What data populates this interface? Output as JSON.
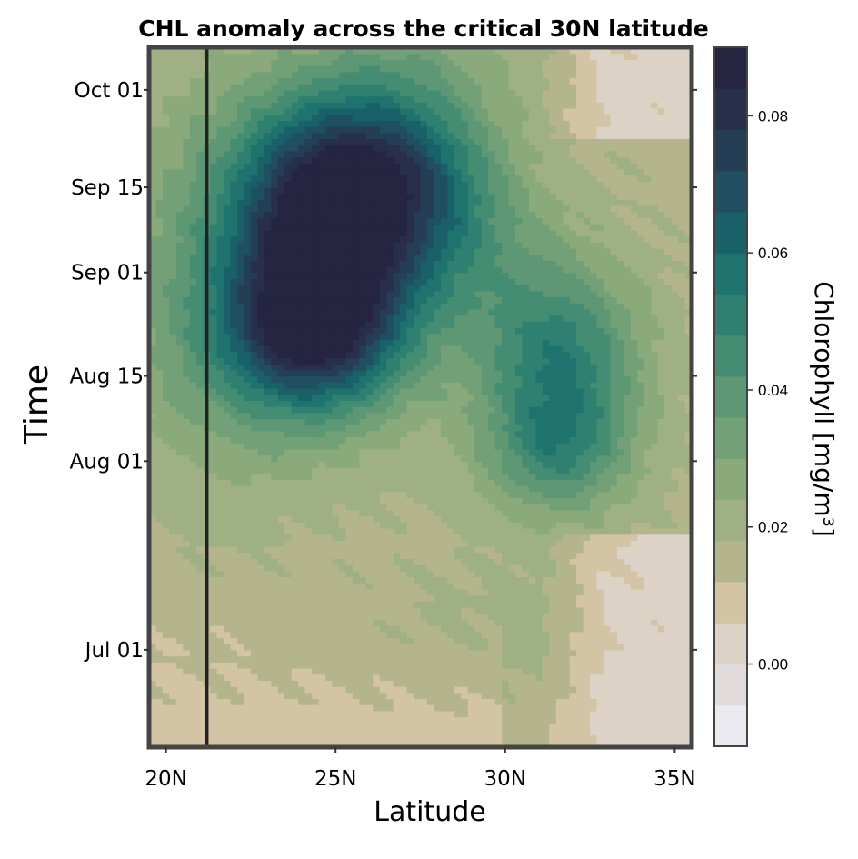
{
  "chart_data": {
    "type": "heatmap",
    "title": "CHL anomaly across the critical 30N latitude",
    "xlabel": "Latitude",
    "ylabel": "Time",
    "colorbar_label": "Chlorophyll [mg/m³]",
    "xlim": [
      19.5,
      35.5
    ],
    "x_ticks": [
      {
        "value": 20,
        "label": "20N"
      },
      {
        "value": 25,
        "label": "25N"
      },
      {
        "value": 30,
        "label": "30N"
      },
      {
        "value": 35,
        "label": "35N"
      }
    ],
    "y_range_days_since_jun15": [
      0,
      115
    ],
    "y_ticks": [
      {
        "value": 16,
        "label": "Jul 01"
      },
      {
        "value": 47,
        "label": "Aug 01"
      },
      {
        "value": 61,
        "label": "Aug 15"
      },
      {
        "value": 78,
        "label": "Sep 01"
      },
      {
        "value": 92,
        "label": "Sep 15"
      },
      {
        "value": 108,
        "label": "Oct 01"
      }
    ],
    "vertical_line_at": 21.2,
    "colorbar": {
      "range": [
        -0.012,
        0.09
      ],
      "ticks": [
        0.0,
        0.02,
        0.04,
        0.06,
        0.08
      ],
      "tick_labels": [
        "0.00",
        "0.02",
        "0.04",
        "0.06",
        "0.08"
      ],
      "levels": [
        -0.012,
        -0.006,
        0.0,
        0.006,
        0.012,
        0.018,
        0.024,
        0.03,
        0.036,
        0.042,
        0.048,
        0.054,
        0.06,
        0.066,
        0.072,
        0.078,
        0.084,
        0.09
      ],
      "colors": [
        "#eceaf1",
        "#e1dbdb",
        "#ddd2c6",
        "#d3c4a5",
        "#b5b58d",
        "#9fb184",
        "#8aaa7c",
        "#73a077",
        "#5d9774",
        "#448c72",
        "#2f8070",
        "#1f736f",
        "#1a6068",
        "#1f4f60",
        "#243e56",
        "#282f4b",
        "#252441"
      ]
    },
    "blobs": [
      {
        "lat": 24.6,
        "day": 79,
        "slat": 1.9,
        "sday": 14,
        "amp": 0.072
      },
      {
        "lat": 25.6,
        "day": 97,
        "slat": 2.2,
        "sday": 9,
        "amp": 0.03
      },
      {
        "lat": 24.2,
        "day": 66,
        "slat": 2.0,
        "sday": 8,
        "amp": 0.025
      },
      {
        "lat": 27.3,
        "day": 92,
        "slat": 1.8,
        "sday": 11,
        "amp": 0.022
      },
      {
        "lat": 28.7,
        "day": 82,
        "slat": 1.8,
        "sday": 11,
        "amp": 0.014
      },
      {
        "lat": 31.6,
        "day": 63,
        "slat": 1.7,
        "sday": 12,
        "amp": 0.036
      },
      {
        "lat": 31.5,
        "day": 48,
        "slat": 1.5,
        "sday": 7,
        "amp": 0.02
      },
      {
        "lat": 21.5,
        "day": 76,
        "slat": 2.5,
        "sday": 24,
        "amp": 0.016
      },
      {
        "lat": 27.0,
        "day": 114,
        "slat": 2.5,
        "sday": 8,
        "amp": 0.01
      },
      {
        "lat": 29.2,
        "day": 20,
        "slat": 3.0,
        "sday": 9,
        "amp": 0.006
      }
    ],
    "background": {
      "value": 0.016,
      "bottom_low_lat": 0.009,
      "top_right_lat": 0.0
    },
    "grid": false
  }
}
